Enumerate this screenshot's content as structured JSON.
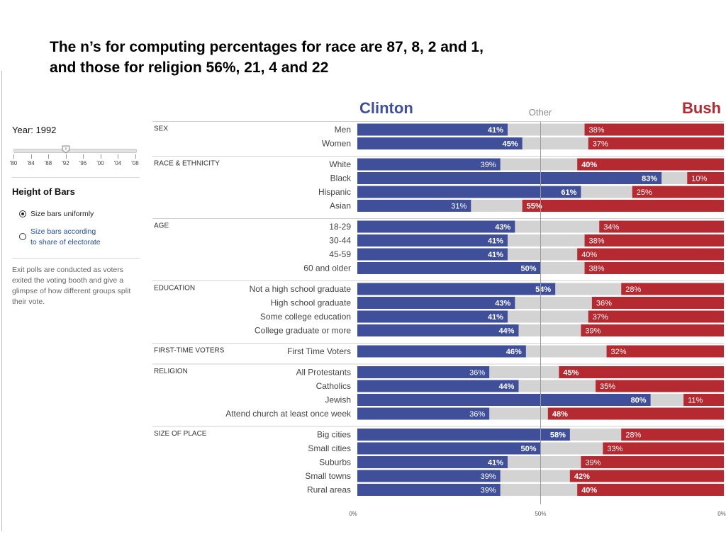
{
  "slide_title": "The n’s for computing percentages for race are 87, 8, 2 and 1,\nand those for religion  56%, 21, 4 and 22",
  "sidebar": {
    "year_label": "Year: 1992",
    "selected_year": "'92",
    "year_ticks": [
      "'80",
      "'84",
      "'88",
      "'92",
      "'96",
      "'00",
      "'04",
      "'08"
    ],
    "bar_height_title": "Height of Bars",
    "radio_uniform": "Size bars uniformly",
    "radio_share": "Size bars according\nto share of electorate",
    "radio_selected": "uniform",
    "note": "Exit polls are conducted as voters exited the voting booth and give a glimpse of how different groups split their vote."
  },
  "colors": {
    "clinton": "#3f4f9a",
    "bush": "#b42a30",
    "other": "#d3d3d3"
  },
  "chart_data": {
    "type": "bar",
    "stacked": true,
    "orientation": "horizontal",
    "series_order": [
      "Clinton",
      "Other",
      "Bush"
    ],
    "header": {
      "left": "Clinton",
      "middle": "Other",
      "right": "Bush"
    },
    "x_ticks": [
      "0%",
      "50%",
      "0%"
    ],
    "xlim": [
      0,
      100
    ],
    "reference_line": 50,
    "sections": [
      {
        "title": "SEX",
        "rows": [
          {
            "label": "Men",
            "clinton": 41,
            "bush": 38
          },
          {
            "label": "Women",
            "clinton": 45,
            "bush": 37
          }
        ]
      },
      {
        "title": "RACE & ETHNICITY",
        "rows": [
          {
            "label": "White",
            "clinton": 39,
            "bush": 40
          },
          {
            "label": "Black",
            "clinton": 83,
            "bush": 10
          },
          {
            "label": "Hispanic",
            "clinton": 61,
            "bush": 25
          },
          {
            "label": "Asian",
            "clinton": 31,
            "bush": 55
          }
        ]
      },
      {
        "title": "AGE",
        "rows": [
          {
            "label": "18-29",
            "clinton": 43,
            "bush": 34
          },
          {
            "label": "30-44",
            "clinton": 41,
            "bush": 38
          },
          {
            "label": "45-59",
            "clinton": 41,
            "bush": 40
          },
          {
            "label": "60 and older",
            "clinton": 50,
            "bush": 38
          }
        ]
      },
      {
        "title": "EDUCATION",
        "rows": [
          {
            "label": "Not a high school graduate",
            "clinton": 54,
            "bush": 28
          },
          {
            "label": "High school graduate",
            "clinton": 43,
            "bush": 36
          },
          {
            "label": "Some college education",
            "clinton": 41,
            "bush": 37
          },
          {
            "label": "College graduate or more",
            "clinton": 44,
            "bush": 39
          }
        ]
      },
      {
        "title": "FIRST-TIME VOTERS",
        "rows": [
          {
            "label": "First Time Voters",
            "clinton": 46,
            "bush": 32
          }
        ]
      },
      {
        "title": "RELIGION",
        "rows": [
          {
            "label": "All Protestants",
            "clinton": 36,
            "bush": 45
          },
          {
            "label": "Catholics",
            "clinton": 44,
            "bush": 35
          },
          {
            "label": "Jewish",
            "clinton": 80,
            "bush": 11
          },
          {
            "label": "Attend church at least once week",
            "clinton": 36,
            "bush": 48
          }
        ]
      },
      {
        "title": "SIZE OF PLACE",
        "rows": [
          {
            "label": "Big cities",
            "clinton": 58,
            "bush": 28
          },
          {
            "label": "Small cities",
            "clinton": 50,
            "bush": 33
          },
          {
            "label": "Suburbs",
            "clinton": 41,
            "bush": 39
          },
          {
            "label": "Small towns",
            "clinton": 39,
            "bush": 42
          },
          {
            "label": "Rural areas",
            "clinton": 39,
            "bush": 40
          }
        ]
      }
    ]
  }
}
